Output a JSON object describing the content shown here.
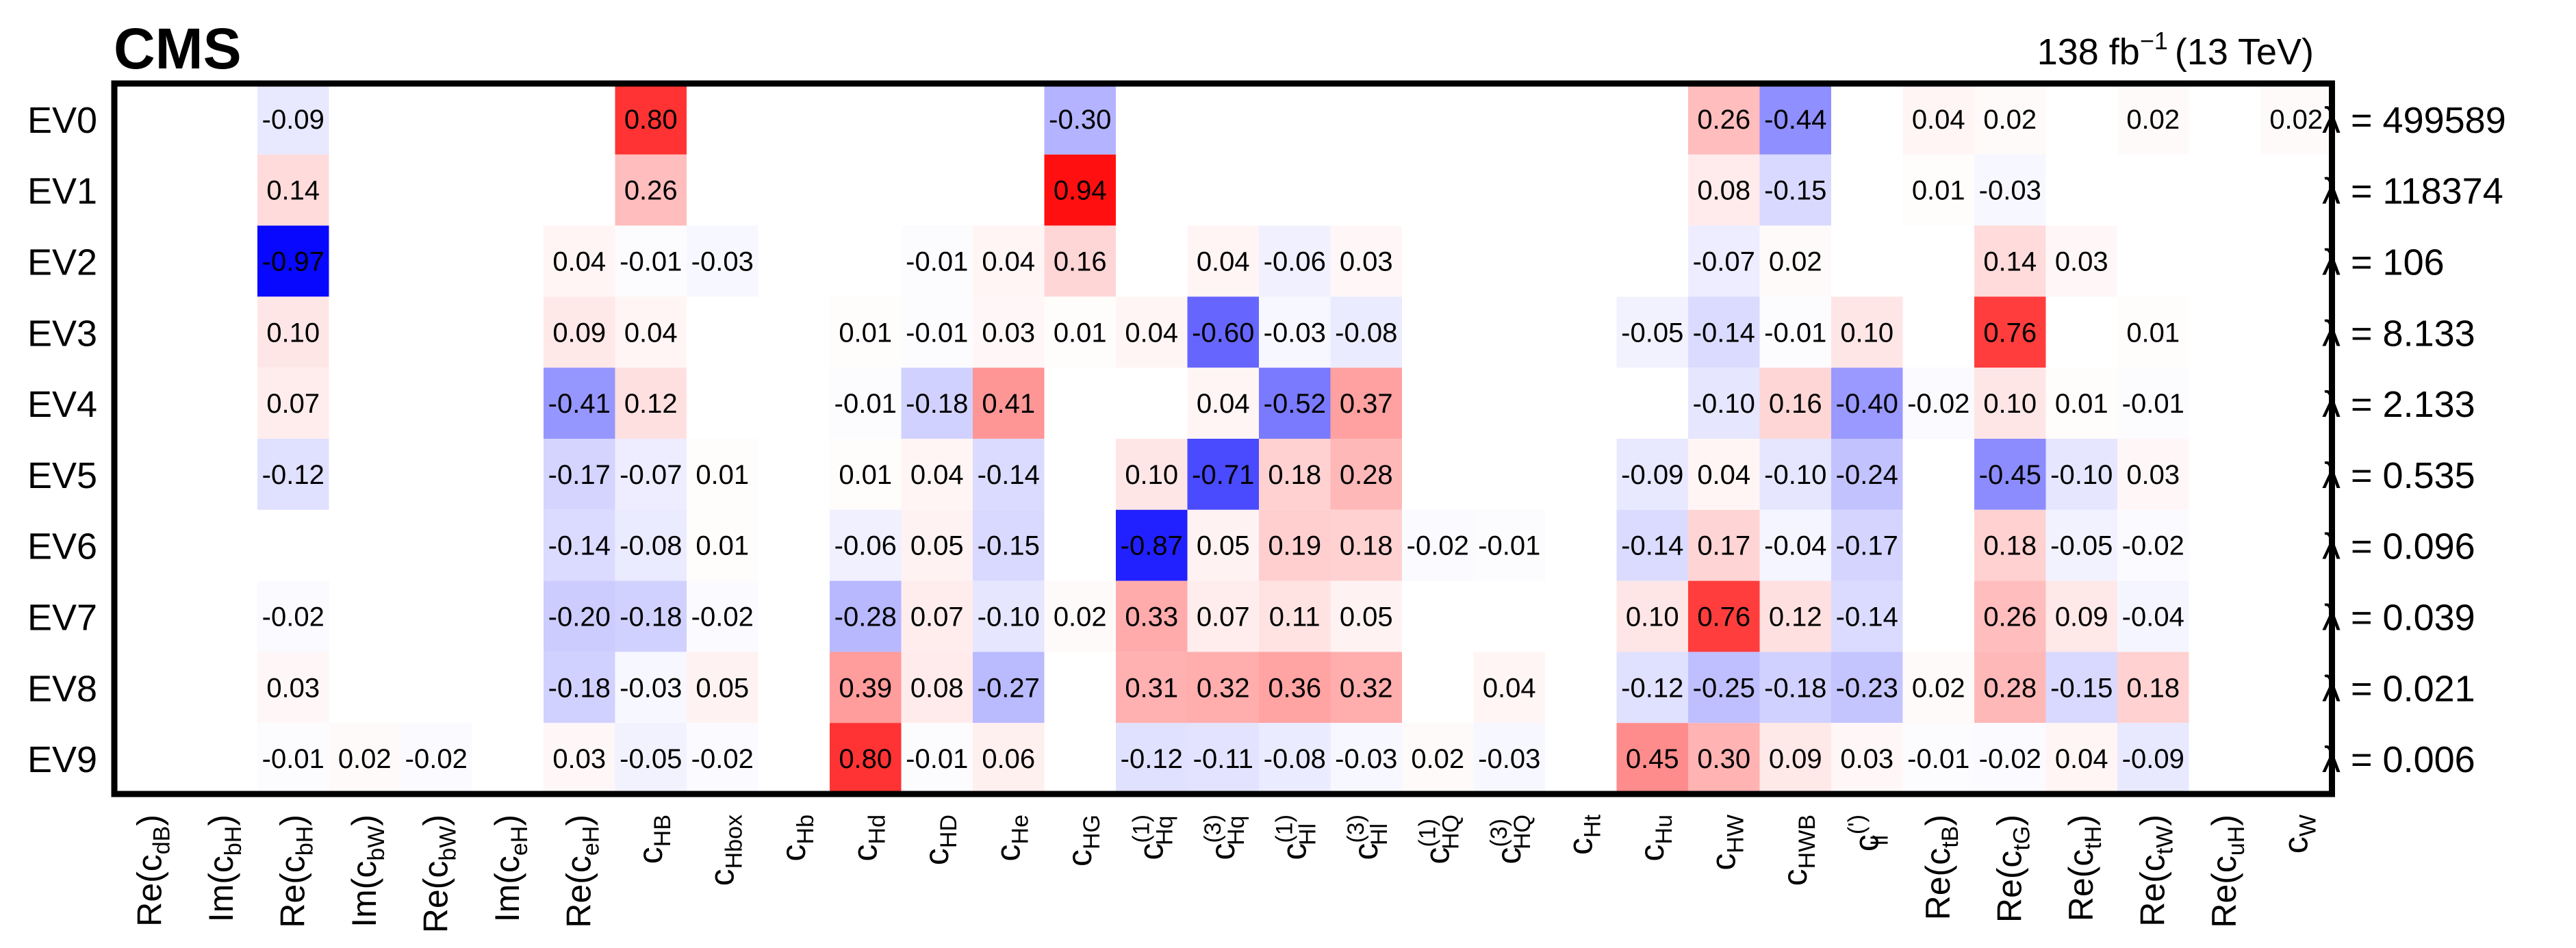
{
  "header": {
    "experiment": "CMS",
    "lumi_value": "138 fb",
    "lumi_exp": "−1",
    "lumi_energy": "(13 TeV)"
  },
  "chart_data": {
    "type": "heatmap",
    "rows": [
      "EV0",
      "EV1",
      "EV2",
      "EV3",
      "EV4",
      "EV5",
      "EV6",
      "EV7",
      "EV8",
      "EV9"
    ],
    "eigenvalues": [
      "λ = 499589",
      "λ = 118374",
      "λ = 106",
      "λ = 8.133",
      "λ = 2.133",
      "λ = 0.535",
      "λ = 0.096",
      "λ = 0.039",
      "λ = 0.021",
      "λ = 0.006"
    ],
    "columns": [
      {
        "pre": "Re(",
        "base": "c",
        "sub": "dB",
        "sup": "",
        "post": ")"
      },
      {
        "pre": "Im(",
        "base": "c",
        "sub": "bH",
        "sup": "",
        "post": ")"
      },
      {
        "pre": "Re(",
        "base": "c",
        "sub": "bH",
        "sup": "",
        "post": ")"
      },
      {
        "pre": "Im(",
        "base": "c",
        "sub": "bW",
        "sup": "",
        "post": ")"
      },
      {
        "pre": "Re(",
        "base": "c",
        "sub": "bW",
        "sup": "",
        "post": ")"
      },
      {
        "pre": "Im(",
        "base": "c",
        "sub": "eH",
        "sup": "",
        "post": ")"
      },
      {
        "pre": "Re(",
        "base": "c",
        "sub": "eH",
        "sup": "",
        "post": ")"
      },
      {
        "pre": "",
        "base": "c",
        "sub": "HB",
        "sup": "",
        "post": ""
      },
      {
        "pre": "",
        "base": "c",
        "sub": "Hbox",
        "sup": "",
        "post": ""
      },
      {
        "pre": "",
        "base": "c",
        "sub": "Hb",
        "sup": "",
        "post": ""
      },
      {
        "pre": "",
        "base": "c",
        "sub": "Hd",
        "sup": "",
        "post": ""
      },
      {
        "pre": "",
        "base": "c",
        "sub": "HD",
        "sup": "",
        "post": ""
      },
      {
        "pre": "",
        "base": "c",
        "sub": "He",
        "sup": "",
        "post": ""
      },
      {
        "pre": "",
        "base": "c",
        "sub": "HG",
        "sup": "",
        "post": ""
      },
      {
        "pre": "",
        "base": "c",
        "sub": "Hq",
        "sup": "(1)",
        "post": ""
      },
      {
        "pre": "",
        "base": "c",
        "sub": "Hq",
        "sup": "(3)",
        "post": ""
      },
      {
        "pre": "",
        "base": "c",
        "sub": "Hl",
        "sup": "(1)",
        "post": ""
      },
      {
        "pre": "",
        "base": "c",
        "sub": "Hl",
        "sup": "(3)",
        "post": ""
      },
      {
        "pre": "",
        "base": "c",
        "sub": "HQ",
        "sup": "(1)",
        "post": ""
      },
      {
        "pre": "",
        "base": "c",
        "sub": "HQ",
        "sup": "(3)",
        "post": ""
      },
      {
        "pre": "",
        "base": "c",
        "sub": "Ht",
        "sup": "",
        "post": ""
      },
      {
        "pre": "",
        "base": "c",
        "sub": "Hu",
        "sup": "",
        "post": ""
      },
      {
        "pre": "",
        "base": "c",
        "sub": "HW",
        "sup": "",
        "post": ""
      },
      {
        "pre": "",
        "base": "c",
        "sub": "HWB",
        "sup": "",
        "post": ""
      },
      {
        "pre": "",
        "base": "c",
        "sub": "ll",
        "sup": "(')",
        "post": ""
      },
      {
        "pre": "Re(",
        "base": "c",
        "sub": "tB",
        "sup": "",
        "post": ")"
      },
      {
        "pre": "Re(",
        "base": "c",
        "sub": "tG",
        "sup": "",
        "post": ")"
      },
      {
        "pre": "Re(",
        "base": "c",
        "sub": "tH",
        "sup": "",
        "post": ")"
      },
      {
        "pre": "Re(",
        "base": "c",
        "sub": "tW",
        "sup": "",
        "post": ")"
      },
      {
        "pre": "Re(",
        "base": "c",
        "sub": "uH",
        "sup": "",
        "post": ")"
      },
      {
        "pre": "",
        "base": "c",
        "sub": "W",
        "sup": "",
        "post": ""
      }
    ],
    "cells": [
      [
        [
          2,
          -0.09
        ],
        [
          7,
          0.8
        ],
        [
          13,
          -0.3
        ],
        [
          22,
          0.26
        ],
        [
          23,
          -0.44
        ],
        [
          25,
          0.04
        ],
        [
          26,
          0.02
        ],
        [
          28,
          0.02
        ],
        [
          30,
          0.02
        ]
      ],
      [
        [
          2,
          0.14
        ],
        [
          7,
          0.26
        ],
        [
          13,
          0.94
        ],
        [
          22,
          0.08
        ],
        [
          23,
          -0.15
        ],
        [
          25,
          0.01
        ],
        [
          26,
          -0.03
        ]
      ],
      [
        [
          2,
          -0.97
        ],
        [
          6,
          0.04
        ],
        [
          7,
          -0.01
        ],
        [
          8,
          -0.03
        ],
        [
          11,
          -0.01
        ],
        [
          12,
          0.04
        ],
        [
          13,
          0.16
        ],
        [
          15,
          0.04
        ],
        [
          16,
          -0.06
        ],
        [
          17,
          0.03
        ],
        [
          22,
          -0.07
        ],
        [
          23,
          0.02
        ],
        [
          26,
          0.14
        ],
        [
          27,
          0.03
        ]
      ],
      [
        [
          2,
          0.1
        ],
        [
          6,
          0.09
        ],
        [
          7,
          0.04
        ],
        [
          10,
          0.01
        ],
        [
          11,
          -0.01
        ],
        [
          12,
          0.03
        ],
        [
          13,
          0.01
        ],
        [
          14,
          0.04
        ],
        [
          15,
          -0.6
        ],
        [
          16,
          -0.03
        ],
        [
          17,
          -0.08
        ],
        [
          21,
          -0.05
        ],
        [
          22,
          -0.14
        ],
        [
          23,
          -0.01
        ],
        [
          24,
          0.1
        ],
        [
          26,
          0.76
        ],
        [
          28,
          0.01
        ]
      ],
      [
        [
          2,
          0.07
        ],
        [
          6,
          -0.41
        ],
        [
          7,
          0.12
        ],
        [
          10,
          -0.01
        ],
        [
          11,
          -0.18
        ],
        [
          12,
          0.41
        ],
        [
          15,
          0.04
        ],
        [
          16,
          -0.52
        ],
        [
          17,
          0.37
        ],
        [
          22,
          -0.1
        ],
        [
          23,
          0.16
        ],
        [
          24,
          -0.4
        ],
        [
          25,
          -0.02
        ],
        [
          26,
          0.1
        ],
        [
          27,
          0.01
        ],
        [
          28,
          -0.01
        ]
      ],
      [
        [
          2,
          -0.12
        ],
        [
          6,
          -0.17
        ],
        [
          7,
          -0.07
        ],
        [
          8,
          0.01
        ],
        [
          10,
          0.01
        ],
        [
          11,
          0.04
        ],
        [
          12,
          -0.14
        ],
        [
          14,
          0.1
        ],
        [
          15,
          -0.71
        ],
        [
          16,
          0.18
        ],
        [
          17,
          0.28
        ],
        [
          21,
          -0.09
        ],
        [
          22,
          0.04
        ],
        [
          23,
          -0.1
        ],
        [
          24,
          -0.24
        ],
        [
          26,
          -0.45
        ],
        [
          27,
          -0.1
        ],
        [
          28,
          0.03
        ]
      ],
      [
        [
          6,
          -0.14
        ],
        [
          7,
          -0.08
        ],
        [
          8,
          0.01
        ],
        [
          10,
          -0.06
        ],
        [
          11,
          0.05
        ],
        [
          12,
          -0.15
        ],
        [
          14,
          -0.87
        ],
        [
          15,
          0.05
        ],
        [
          16,
          0.19
        ],
        [
          17,
          0.18
        ],
        [
          18,
          -0.02
        ],
        [
          19,
          -0.01
        ],
        [
          21,
          -0.14
        ],
        [
          22,
          0.17
        ],
        [
          23,
          -0.04
        ],
        [
          24,
          -0.17
        ],
        [
          26,
          0.18
        ],
        [
          27,
          -0.05
        ],
        [
          28,
          -0.02
        ]
      ],
      [
        [
          2,
          -0.02
        ],
        [
          6,
          -0.2
        ],
        [
          7,
          -0.18
        ],
        [
          8,
          -0.02
        ],
        [
          10,
          -0.28
        ],
        [
          11,
          0.07
        ],
        [
          12,
          -0.1
        ],
        [
          13,
          0.02
        ],
        [
          14,
          0.33
        ],
        [
          15,
          0.07
        ],
        [
          16,
          0.11
        ],
        [
          17,
          0.05
        ],
        [
          21,
          0.1
        ],
        [
          22,
          0.76
        ],
        [
          23,
          0.12
        ],
        [
          24,
          -0.14
        ],
        [
          26,
          0.26
        ],
        [
          27,
          0.09
        ],
        [
          28,
          -0.04
        ]
      ],
      [
        [
          2,
          0.03
        ],
        [
          6,
          -0.18
        ],
        [
          7,
          -0.03
        ],
        [
          8,
          0.05
        ],
        [
          10,
          0.39
        ],
        [
          11,
          0.08
        ],
        [
          12,
          -0.27
        ],
        [
          14,
          0.31
        ],
        [
          15,
          0.32
        ],
        [
          16,
          0.36
        ],
        [
          17,
          0.32
        ],
        [
          19,
          0.04
        ],
        [
          21,
          -0.12
        ],
        [
          22,
          -0.25
        ],
        [
          23,
          -0.18
        ],
        [
          24,
          -0.23
        ],
        [
          25,
          0.02
        ],
        [
          26,
          0.28
        ],
        [
          27,
          -0.15
        ],
        [
          28,
          0.18
        ]
      ],
      [
        [
          2,
          -0.01
        ],
        [
          3,
          0.02
        ],
        [
          4,
          -0.02
        ],
        [
          6,
          0.03
        ],
        [
          7,
          -0.05
        ],
        [
          8,
          -0.02
        ],
        [
          10,
          0.8
        ],
        [
          11,
          -0.01
        ],
        [
          12,
          0.06
        ],
        [
          14,
          -0.12
        ],
        [
          15,
          -0.11
        ],
        [
          16,
          -0.08
        ],
        [
          17,
          -0.03
        ],
        [
          18,
          0.02
        ],
        [
          19,
          -0.03
        ],
        [
          21,
          0.45
        ],
        [
          22,
          0.3
        ],
        [
          23,
          0.09
        ],
        [
          24,
          0.03
        ],
        [
          25,
          -0.01
        ],
        [
          26,
          -0.02
        ],
        [
          27,
          0.04
        ],
        [
          28,
          -0.09
        ]
      ]
    ],
    "color_scale": {
      "negative": "#0000ff",
      "zero": "#ffffff",
      "positive": "#ff0000",
      "range": [
        -1,
        1
      ]
    }
  }
}
